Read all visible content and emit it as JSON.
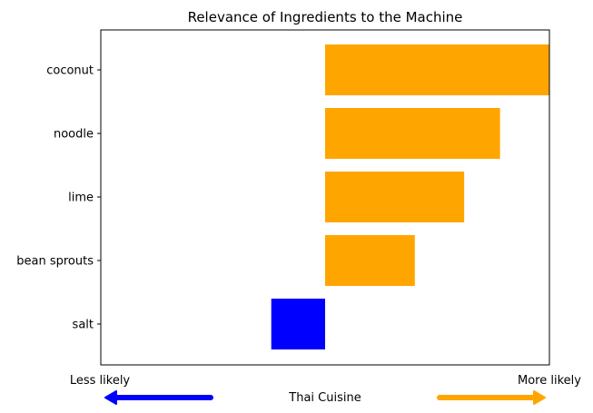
{
  "chart_data": {
    "type": "bar",
    "orientation": "horizontal",
    "title": "Relevance of Ingredients to the Machine",
    "categories": [
      "coconut",
      "noodle",
      "lime",
      "bean sprouts",
      "salt"
    ],
    "values": [
      0.5,
      0.39,
      0.31,
      0.2,
      -0.12
    ],
    "xlim": [
      -0.5,
      0.5
    ],
    "bar_colors": [
      "#FFA500",
      "#FFA500",
      "#FFA500",
      "#FFA500",
      "#0000FF"
    ],
    "x_end_labels": {
      "left": "Less likely",
      "right": "More likely"
    },
    "xlabel": "Thai Cuisine",
    "arrows": {
      "left_color": "#0000FF",
      "right_color": "#FFA500"
    },
    "grid": false
  }
}
